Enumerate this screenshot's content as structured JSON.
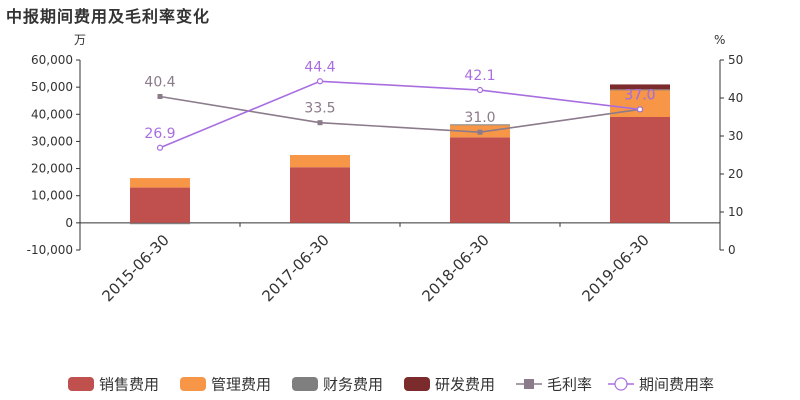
{
  "title": "中报期间费用及毛利率变化",
  "chart_data": {
    "type": "bar",
    "categories": [
      "2015-06-30",
      "2017-06-30",
      "2018-06-30",
      "2019-06-30"
    ],
    "left_axis": {
      "unit": "万",
      "ylim": [
        -10000,
        60000
      ],
      "ticks": [
        -10000,
        0,
        10000,
        20000,
        30000,
        40000,
        50000,
        60000
      ]
    },
    "right_axis": {
      "unit": "%",
      "ylim": [
        0,
        50
      ],
      "ticks": [
        0,
        10,
        20,
        30,
        40,
        50
      ]
    },
    "series": [
      {
        "name": "销售费用",
        "type": "bar",
        "axis": "left",
        "color": "#c0504d",
        "values": [
          13000,
          20500,
          31500,
          39000
        ]
      },
      {
        "name": "管理费用",
        "type": "bar",
        "axis": "left",
        "color": "#f79646",
        "values": [
          3500,
          4500,
          4500,
          10000
        ]
      },
      {
        "name": "财务费用",
        "type": "bar",
        "axis": "left",
        "color": "#7f7f7f",
        "values": [
          -500,
          0,
          300,
          200
        ]
      },
      {
        "name": "研发费用",
        "type": "bar",
        "axis": "left",
        "color": "#7b2b2b",
        "values": [
          0,
          0,
          0,
          1800
        ]
      },
      {
        "name": "毛利率",
        "type": "line",
        "axis": "right",
        "color": "#8b7b8b",
        "marker": "square",
        "values": [
          40.4,
          33.5,
          31.0,
          37.0
        ]
      },
      {
        "name": "期间费用率",
        "type": "line",
        "axis": "right",
        "color": "#a86ee0",
        "marker": "circle",
        "values": [
          26.9,
          44.4,
          42.1,
          37.0
        ]
      }
    ],
    "data_labels": [
      {
        "series": "毛利率",
        "values": [
          "40.4",
          "33.5",
          "31.0",
          "37.0"
        ]
      },
      {
        "series": "期间费用率",
        "values": [
          "26.9",
          "44.4",
          "42.1",
          "37.0"
        ]
      }
    ],
    "legend": "bottom",
    "grid": false
  }
}
